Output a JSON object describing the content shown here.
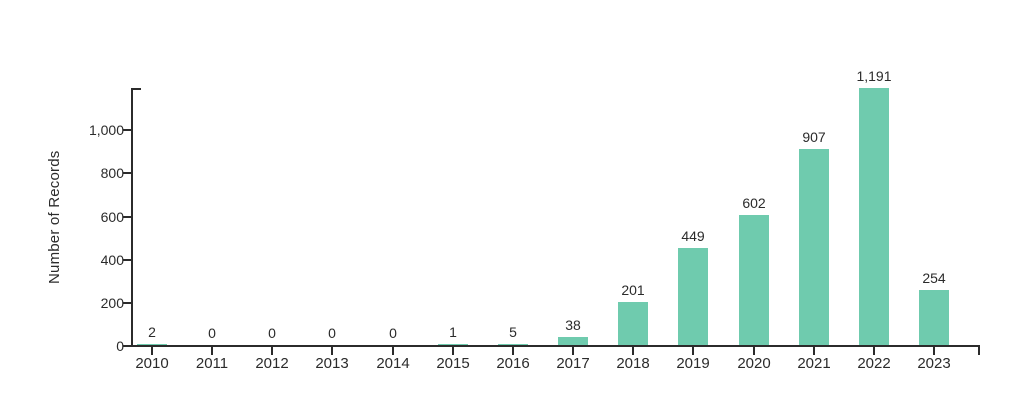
{
  "chart_data": {
    "type": "bar",
    "title": "",
    "xlabel": "",
    "ylabel": "Number of Records",
    "categories": [
      "2010",
      "2011",
      "2012",
      "2013",
      "2014",
      "2015",
      "2016",
      "2017",
      "2018",
      "2019",
      "2020",
      "2021",
      "2022",
      "2023"
    ],
    "values": [
      2,
      0,
      0,
      0,
      0,
      1,
      5,
      38,
      201,
      449,
      602,
      907,
      1191,
      254
    ],
    "value_labels": [
      "2",
      "0",
      "0",
      "0",
      "0",
      "1",
      "5",
      "38",
      "201",
      "449",
      "602",
      "907",
      "1,191",
      "254"
    ],
    "yticks": [
      0,
      200,
      400,
      600,
      800,
      1000
    ],
    "ytick_labels": [
      "0",
      "200",
      "400",
      "600",
      "800",
      "1,000"
    ],
    "ylim": [
      0,
      1191
    ],
    "grid": false,
    "legend_position": "none",
    "bar_color": "#6fcbae",
    "axis_color": "#2b2b2b",
    "text_color": "#2b2b2b",
    "background_color": "#ffffff"
  }
}
